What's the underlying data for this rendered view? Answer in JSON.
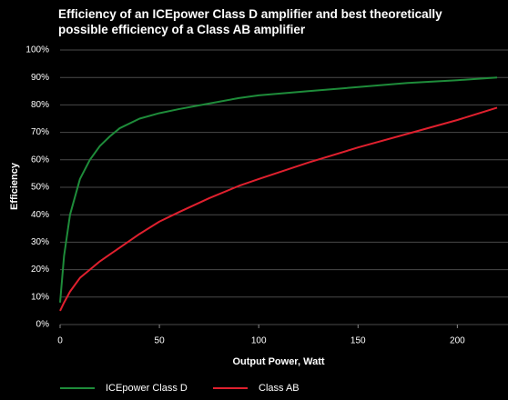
{
  "chart_data": {
    "type": "line",
    "title": "Efficiency of an ICEpower Class D amplifier and best theoretically possible efficiency of a Class AB amplifier",
    "x_label": "Output Power, Watt",
    "y_label": "Efficiency",
    "x": [
      0,
      2,
      5,
      10,
      15,
      20,
      25,
      30,
      40,
      50,
      60,
      75,
      90,
      100,
      125,
      150,
      175,
      200,
      220
    ],
    "series": [
      {
        "name": "ICEpower Class D",
        "color": "#1e8c3a",
        "values": [
          8,
          25,
          40,
          53,
          60,
          65,
          68.5,
          71.5,
          75,
          77,
          78.5,
          80.5,
          82.5,
          83.5,
          85,
          86.5,
          88,
          89,
          90
        ]
      },
      {
        "name": "Class AB",
        "color": "#e0202e",
        "values": [
          5,
          8,
          12,
          17,
          20,
          23,
          25.5,
          28,
          33,
          37.5,
          41,
          46,
          50.5,
          53,
          59,
          64.5,
          69.5,
          74.5,
          79
        ]
      }
    ],
    "xlim": [
      0,
      220
    ],
    "xticks": [
      0,
      50,
      100,
      150,
      200
    ],
    "ylim": [
      0,
      100
    ],
    "yticks": [
      {
        "value": 0,
        "label": "0%"
      },
      {
        "value": 10,
        "label": "10%"
      },
      {
        "value": 20,
        "label": "20%"
      },
      {
        "value": 30,
        "label": "30%"
      },
      {
        "value": 40,
        "label": "40%"
      },
      {
        "value": 50,
        "label": "50%"
      },
      {
        "value": 60,
        "label": "60%"
      },
      {
        "value": 70,
        "label": "70%"
      },
      {
        "value": 80,
        "label": "80%"
      },
      {
        "value": 90,
        "label": "90%"
      },
      {
        "value": 100,
        "label": "100%"
      }
    ],
    "grid": true
  }
}
